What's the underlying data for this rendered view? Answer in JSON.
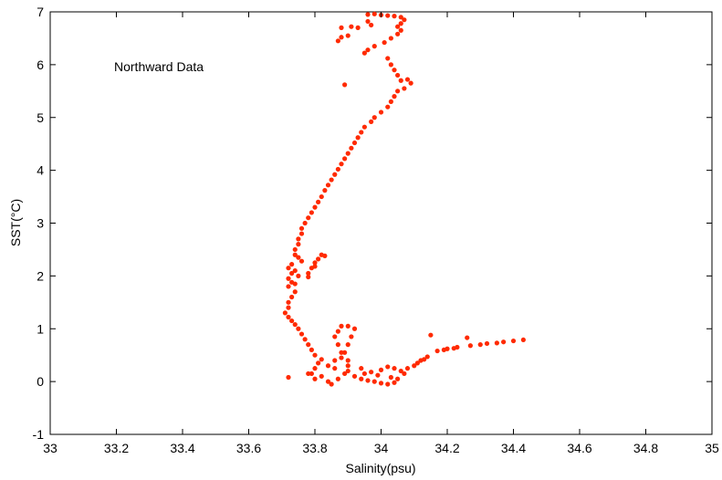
{
  "chart_data": {
    "type": "scatter",
    "title": "",
    "xlabel": "Salinity(psu)",
    "ylabel": "SST(°C)",
    "xlim": [
      33,
      35
    ],
    "ylim": [
      -1,
      7
    ],
    "x_ticks": [
      "33",
      "33.2",
      "33.4",
      "33.6",
      "33.8",
      "34",
      "34.2",
      "34.4",
      "34.6",
      "34.8",
      "35"
    ],
    "y_ticks": [
      "-1",
      "0",
      "1",
      "2",
      "3",
      "4",
      "5",
      "6",
      "7"
    ],
    "annotation": "Northward Data",
    "grid": false,
    "marker_color": "#ff2a00",
    "series": [
      {
        "points": [
          [
            33.96,
            6.95
          ],
          [
            33.98,
            6.96
          ],
          [
            34.0,
            6.94
          ],
          [
            34.02,
            6.93
          ],
          [
            34.04,
            6.92
          ],
          [
            34.06,
            6.9
          ],
          [
            34.07,
            6.85
          ],
          [
            34.06,
            6.78
          ],
          [
            34.05,
            6.72
          ],
          [
            34.06,
            6.65
          ],
          [
            34.05,
            6.58
          ],
          [
            34.03,
            6.5
          ],
          [
            34.01,
            6.42
          ],
          [
            33.98,
            6.35
          ],
          [
            33.96,
            6.28
          ],
          [
            33.95,
            6.22
          ],
          [
            33.96,
            6.82
          ],
          [
            33.97,
            6.75
          ],
          [
            33.93,
            6.7
          ],
          [
            33.91,
            6.72
          ],
          [
            33.88,
            6.7
          ],
          [
            33.9,
            6.55
          ],
          [
            33.88,
            6.52
          ],
          [
            33.89,
            5.62
          ],
          [
            33.87,
            6.45
          ],
          [
            34.02,
            6.12
          ],
          [
            34.03,
            6.0
          ],
          [
            34.04,
            5.9
          ],
          [
            34.05,
            5.8
          ],
          [
            34.06,
            5.7
          ],
          [
            34.08,
            5.72
          ],
          [
            34.09,
            5.65
          ],
          [
            34.07,
            5.55
          ],
          [
            34.05,
            5.5
          ],
          [
            34.04,
            5.4
          ],
          [
            34.03,
            5.3
          ],
          [
            34.02,
            5.2
          ],
          [
            34.0,
            5.1
          ],
          [
            33.98,
            5.0
          ],
          [
            33.97,
            4.92
          ],
          [
            33.95,
            4.82
          ],
          [
            33.94,
            4.72
          ],
          [
            33.93,
            4.62
          ],
          [
            33.92,
            4.52
          ],
          [
            33.91,
            4.42
          ],
          [
            33.9,
            4.32
          ],
          [
            33.89,
            4.22
          ],
          [
            33.88,
            4.12
          ],
          [
            33.87,
            4.02
          ],
          [
            33.86,
            3.92
          ],
          [
            33.85,
            3.82
          ],
          [
            33.84,
            3.72
          ],
          [
            33.83,
            3.62
          ],
          [
            33.82,
            3.5
          ],
          [
            33.81,
            3.4
          ],
          [
            33.8,
            3.3
          ],
          [
            33.79,
            3.2
          ],
          [
            33.78,
            3.1
          ],
          [
            33.77,
            3.0
          ],
          [
            33.76,
            2.9
          ],
          [
            33.76,
            2.8
          ],
          [
            33.75,
            2.7
          ],
          [
            33.75,
            2.6
          ],
          [
            33.74,
            2.5
          ],
          [
            33.74,
            2.4
          ],
          [
            33.75,
            2.35
          ],
          [
            33.76,
            2.28
          ],
          [
            33.73,
            2.22
          ],
          [
            33.72,
            2.15
          ],
          [
            33.73,
            2.05
          ],
          [
            33.72,
            1.95
          ],
          [
            33.73,
            1.88
          ],
          [
            33.72,
            1.8
          ],
          [
            33.74,
            1.85
          ],
          [
            33.75,
            2.0
          ],
          [
            33.74,
            2.1
          ],
          [
            33.78,
            2.05
          ],
          [
            33.79,
            2.15
          ],
          [
            33.8,
            2.25
          ],
          [
            33.81,
            2.32
          ],
          [
            33.82,
            2.4
          ],
          [
            33.83,
            2.38
          ],
          [
            33.8,
            2.18
          ],
          [
            33.78,
            1.98
          ],
          [
            33.74,
            1.7
          ],
          [
            33.73,
            1.6
          ],
          [
            33.72,
            1.5
          ],
          [
            33.72,
            1.4
          ],
          [
            33.71,
            1.3
          ],
          [
            33.72,
            1.22
          ],
          [
            33.73,
            1.15
          ],
          [
            33.74,
            1.08
          ],
          [
            33.75,
            1.0
          ],
          [
            33.76,
            0.9
          ],
          [
            33.77,
            0.8
          ],
          [
            33.78,
            0.7
          ],
          [
            33.79,
            0.6
          ],
          [
            33.8,
            0.5
          ],
          [
            33.82,
            0.42
          ],
          [
            33.86,
            0.4
          ],
          [
            33.88,
            0.55
          ],
          [
            33.87,
            0.7
          ],
          [
            33.86,
            0.85
          ],
          [
            33.87,
            0.95
          ],
          [
            33.88,
            1.05
          ],
          [
            33.9,
            1.05
          ],
          [
            33.92,
            1.0
          ],
          [
            33.91,
            0.85
          ],
          [
            33.9,
            0.7
          ],
          [
            33.89,
            0.55
          ],
          [
            33.9,
            0.4
          ],
          [
            33.88,
            0.45
          ],
          [
            33.8,
            0.25
          ],
          [
            33.79,
            0.15
          ],
          [
            33.8,
            0.05
          ],
          [
            33.82,
            0.1
          ],
          [
            33.84,
            0.0
          ],
          [
            33.85,
            -0.05
          ],
          [
            33.87,
            0.05
          ],
          [
            33.89,
            0.15
          ],
          [
            33.9,
            0.2
          ],
          [
            33.92,
            0.1
          ],
          [
            33.94,
            0.05
          ],
          [
            33.96,
            0.02
          ],
          [
            33.98,
            0.0
          ],
          [
            34.0,
            -0.03
          ],
          [
            34.02,
            -0.05
          ],
          [
            34.04,
            -0.02
          ],
          [
            34.05,
            0.05
          ],
          [
            33.84,
            0.3
          ],
          [
            33.86,
            0.25
          ],
          [
            33.9,
            0.3
          ],
          [
            33.94,
            0.25
          ],
          [
            33.97,
            0.18
          ],
          [
            34.0,
            0.22
          ],
          [
            34.02,
            0.28
          ],
          [
            34.04,
            0.25
          ],
          [
            34.06,
            0.2
          ],
          [
            34.07,
            0.15
          ],
          [
            34.08,
            0.25
          ],
          [
            34.1,
            0.3
          ],
          [
            34.11,
            0.35
          ],
          [
            34.12,
            0.4
          ],
          [
            34.13,
            0.42
          ],
          [
            33.72,
            0.08
          ],
          [
            33.78,
            0.15
          ],
          [
            33.81,
            0.35
          ],
          [
            34.03,
            0.08
          ],
          [
            33.99,
            0.12
          ],
          [
            33.95,
            0.15
          ],
          [
            34.14,
            0.47
          ],
          [
            34.15,
            0.88
          ],
          [
            34.17,
            0.58
          ],
          [
            34.19,
            0.6
          ],
          [
            34.2,
            0.62
          ],
          [
            34.22,
            0.63
          ],
          [
            34.23,
            0.65
          ],
          [
            34.26,
            0.83
          ],
          [
            34.27,
            0.68
          ],
          [
            34.3,
            0.7
          ],
          [
            34.32,
            0.72
          ],
          [
            34.35,
            0.73
          ],
          [
            34.37,
            0.75
          ],
          [
            34.4,
            0.77
          ],
          [
            34.43,
            0.79
          ]
        ]
      }
    ]
  }
}
